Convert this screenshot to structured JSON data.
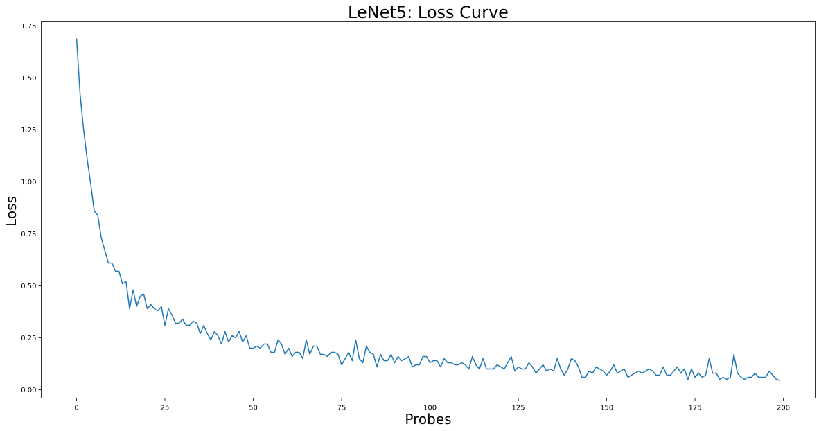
{
  "chart_data": {
    "type": "line",
    "title": "LeNet5: Loss Curve",
    "xlabel": "Probes",
    "ylabel": "Loss",
    "xlim": [
      -10,
      209
    ],
    "ylim": [
      -0.04,
      1.77
    ],
    "xticks": [
      0,
      25,
      50,
      75,
      100,
      125,
      150,
      175,
      200
    ],
    "xtick_labels": [
      "0",
      "25",
      "50",
      "75",
      "100",
      "125",
      "150",
      "175",
      "200"
    ],
    "yticks": [
      0.0,
      0.25,
      0.5,
      0.75,
      1.0,
      1.25,
      1.5,
      1.75
    ],
    "ytick_labels": [
      "0.00",
      "0.25",
      "0.50",
      "0.75",
      "1.00",
      "1.25",
      "1.50",
      "1.75"
    ],
    "grid": false,
    "line_color": "#1f77b4",
    "series": [
      {
        "values": [
          1.69,
          1.42,
          1.25,
          1.11,
          0.99,
          0.86,
          0.84,
          0.73,
          0.67,
          0.61,
          0.61,
          0.57,
          0.57,
          0.51,
          0.52,
          0.39,
          0.48,
          0.4,
          0.45,
          0.46,
          0.39,
          0.41,
          0.39,
          0.38,
          0.4,
          0.31,
          0.39,
          0.36,
          0.32,
          0.32,
          0.34,
          0.31,
          0.31,
          0.33,
          0.32,
          0.27,
          0.31,
          0.27,
          0.24,
          0.28,
          0.26,
          0.22,
          0.28,
          0.23,
          0.26,
          0.25,
          0.28,
          0.23,
          0.26,
          0.2,
          0.2,
          0.21,
          0.2,
          0.22,
          0.22,
          0.18,
          0.18,
          0.24,
          0.22,
          0.17,
          0.2,
          0.16,
          0.18,
          0.18,
          0.15,
          0.24,
          0.17,
          0.21,
          0.21,
          0.17,
          0.17,
          0.16,
          0.18,
          0.18,
          0.17,
          0.12,
          0.15,
          0.18,
          0.14,
          0.24,
          0.15,
          0.13,
          0.21,
          0.18,
          0.17,
          0.11,
          0.17,
          0.14,
          0.14,
          0.17,
          0.13,
          0.16,
          0.14,
          0.15,
          0.16,
          0.11,
          0.12,
          0.12,
          0.16,
          0.16,
          0.13,
          0.14,
          0.14,
          0.11,
          0.15,
          0.13,
          0.13,
          0.12,
          0.12,
          0.13,
          0.12,
          0.1,
          0.16,
          0.12,
          0.1,
          0.15,
          0.1,
          0.1,
          0.1,
          0.12,
          0.11,
          0.1,
          0.13,
          0.16,
          0.09,
          0.11,
          0.1,
          0.1,
          0.13,
          0.11,
          0.08,
          0.1,
          0.12,
          0.09,
          0.1,
          0.09,
          0.15,
          0.1,
          0.07,
          0.1,
          0.15,
          0.14,
          0.11,
          0.06,
          0.06,
          0.09,
          0.08,
          0.11,
          0.1,
          0.09,
          0.07,
          0.09,
          0.12,
          0.08,
          0.09,
          0.1,
          0.06,
          0.07,
          0.08,
          0.09,
          0.08,
          0.09,
          0.1,
          0.09,
          0.07,
          0.07,
          0.11,
          0.07,
          0.07,
          0.09,
          0.11,
          0.08,
          0.1,
          0.05,
          0.1,
          0.06,
          0.08,
          0.06,
          0.07,
          0.15,
          0.08,
          0.08,
          0.05,
          0.06,
          0.05,
          0.06,
          0.17,
          0.08,
          0.06,
          0.05,
          0.06,
          0.06,
          0.08,
          0.06,
          0.06,
          0.06,
          0.09,
          0.07,
          0.05,
          0.045
        ]
      }
    ]
  }
}
